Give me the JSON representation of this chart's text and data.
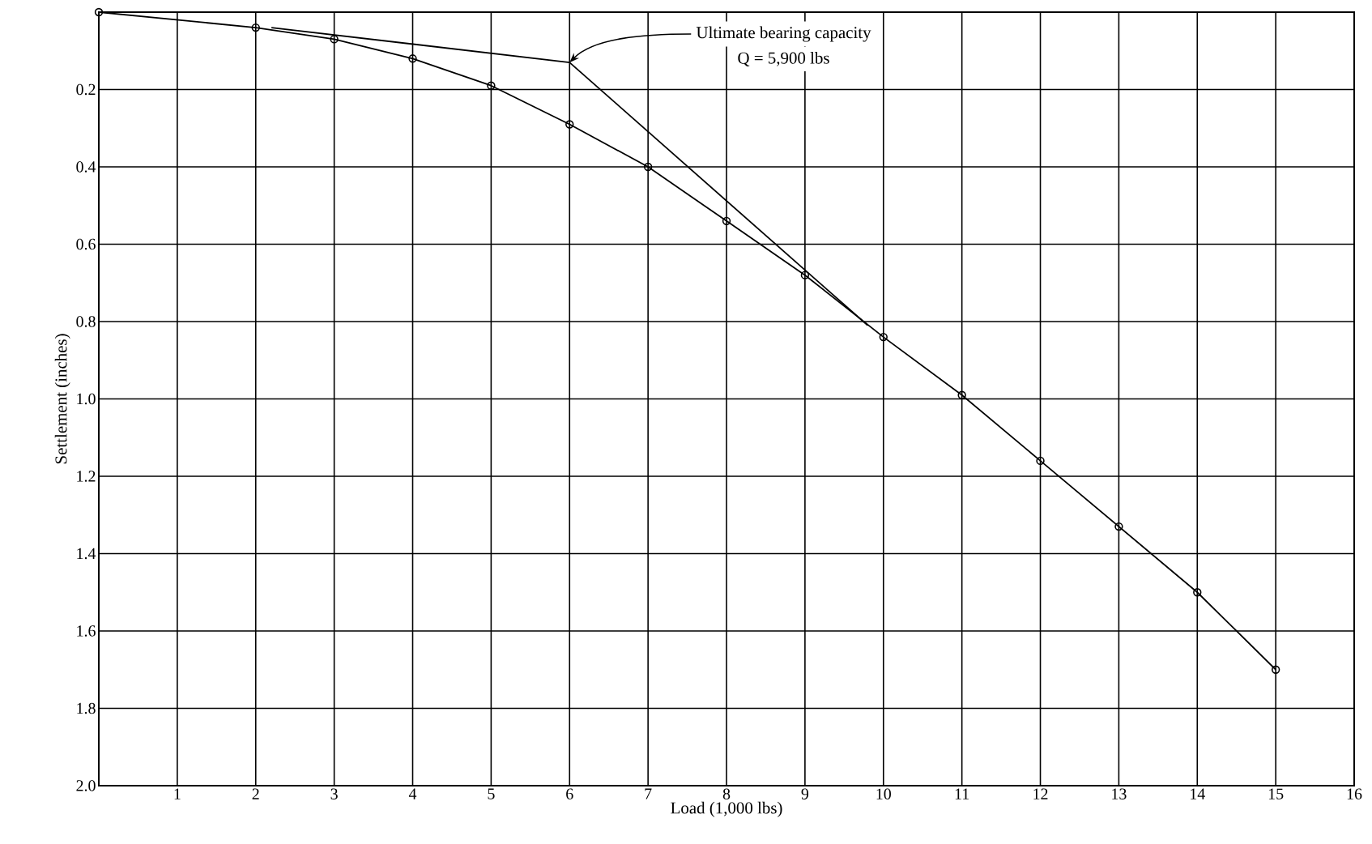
{
  "chart_data": {
    "type": "line",
    "xlabel": "Load (1,000 lbs)",
    "ylabel": "Settlement (inches)",
    "xlim": [
      0,
      16
    ],
    "xticks": [
      {
        "value": 0,
        "label": null
      },
      1,
      2,
      3,
      4,
      5,
      6,
      7,
      8,
      9,
      10,
      11,
      12,
      13,
      14,
      15,
      16
    ],
    "ylim": [
      2.0,
      0
    ],
    "yticks": [
      {
        "value": 0,
        "label": null
      },
      0.2,
      0.4,
      0.6,
      0.8,
      {
        "value": 1.0,
        "label": "1.0"
      },
      1.2,
      1.4,
      1.6,
      1.8,
      {
        "value": 2.0,
        "label": "2.0"
      }
    ],
    "grid": true,
    "marker": "circle",
    "series": [
      {
        "color": "#000000",
        "x": [
          0,
          2,
          3,
          4,
          5,
          6,
          7,
          8,
          9,
          10,
          11,
          12,
          13,
          14,
          15
        ],
        "values": [
          0,
          0.04,
          0.07,
          0.12,
          0.19,
          0.29,
          0.4,
          0.54,
          0.68,
          0.84,
          0.99,
          1.16,
          1.33,
          1.5,
          1.7
        ]
      },
      {
        "color": "#000000",
        "marker": "none",
        "x": [
          2.2,
          6
        ],
        "values": [
          0.04,
          0.13
        ]
      },
      {
        "color": "#000000",
        "marker": "none",
        "x": [
          6,
          9.8
        ],
        "values": [
          0.13,
          0.81
        ]
      }
    ],
    "annotations": [
      {
        "text": "Ultimate bearing capacity",
        "x": 6,
        "y": 0.13
      },
      "Q = 5,900 lbs"
    ]
  }
}
